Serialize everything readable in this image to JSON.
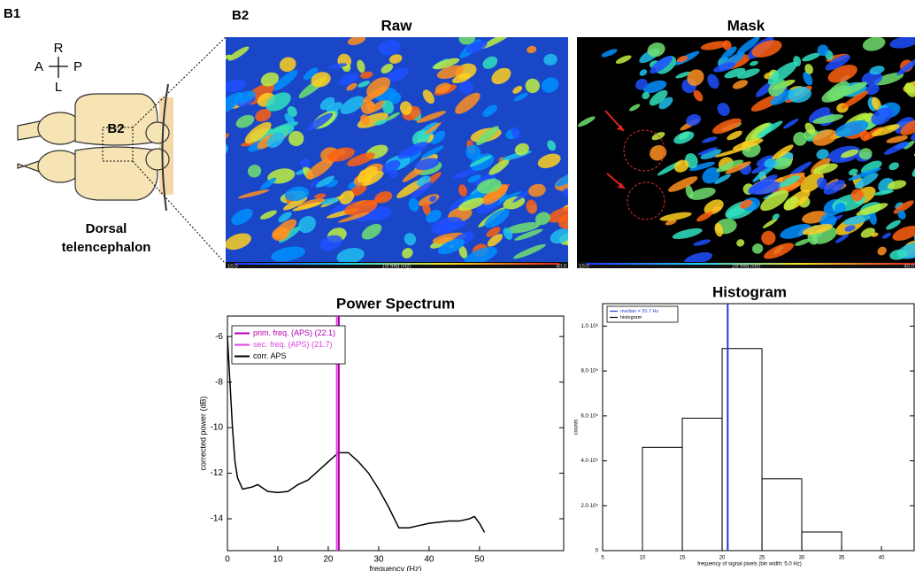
{
  "panels": {
    "b1": {
      "label": "B1",
      "orientation": {
        "r": "R",
        "a": "A",
        "p": "P",
        "l": "L"
      },
      "region": "B2",
      "caption": [
        "Dorsal",
        "telencephalon"
      ]
    },
    "b2": {
      "label": "B2",
      "images": [
        {
          "title": "Raw",
          "colorbar": [
            "10.0",
            "1st freq (Hz)",
            "40.0"
          ]
        },
        {
          "title": "Mask",
          "colorbar": [
            "10.0",
            "1st freq (Hz)",
            "40.0"
          ]
        }
      ]
    }
  },
  "chart_data": [
    {
      "type": "line",
      "title": "Power Spectrum",
      "x_label": "frequency (Hz)",
      "y_label": "corrected power (dB)",
      "x": [
        0,
        0.5,
        1,
        1.5,
        2,
        3,
        5,
        6,
        8,
        10,
        12,
        14,
        16,
        18,
        20,
        22,
        24,
        26,
        28,
        30,
        32,
        34,
        36,
        38,
        40,
        42,
        44,
        46,
        48,
        49,
        50,
        51
      ],
      "series": [
        {
          "name": "corr. APS",
          "color": "#000000",
          "values": [
            -6,
            -8,
            -10,
            -11.5,
            -12.2,
            -12.7,
            -12.6,
            -12.5,
            -12.8,
            -12.85,
            -12.8,
            -12.5,
            -12.3,
            -11.9,
            -11.5,
            -11.1,
            -11.1,
            -11.5,
            -12,
            -12.7,
            -13.5,
            -14.4,
            -14.4,
            -14.3,
            -14.2,
            -14.15,
            -14.1,
            -14.1,
            -14,
            -13.9,
            -14.2,
            -14.6
          ]
        }
      ],
      "vlines": [
        {
          "name": "prim. freq. (APS) (22.1)",
          "color": "#b000b0",
          "x": 22.1
        },
        {
          "name": "sec. freq. (APS) (21.7)",
          "color": "#e040e0",
          "x": 21.7
        }
      ],
      "xlim": [
        0,
        66.7
      ],
      "xticks": [
        0,
        10,
        20,
        30,
        40,
        50
      ],
      "ylim": [
        -15.4,
        -5.1
      ],
      "yticks": [
        -6,
        -8,
        -10,
        -12,
        -14
      ]
    },
    {
      "type": "histogram",
      "title": "Histogram",
      "x_label": "frequency of signal pixels (bin width: 5.0 Hz)",
      "y_label": "counts",
      "name": "histogram",
      "color": "#000000",
      "bins": [
        10,
        15,
        20,
        25,
        30,
        35
      ],
      "values": [
        460000,
        590000,
        900000,
        320000,
        83000
      ],
      "vlines": [
        {
          "name": "median = 20.7 Hz",
          "color": "#1f3fd0",
          "x": 20.7
        }
      ],
      "xlim": [
        5,
        44.1
      ],
      "xticks": [
        5,
        10,
        15,
        20,
        25,
        30,
        35,
        40
      ],
      "ylim": [
        0,
        1100000
      ],
      "yticks": [
        0,
        {
          "value": 200000,
          "label": "2.0·10⁵"
        },
        {
          "value": 400000,
          "label": "4.0·10⁵"
        },
        {
          "value": 600000,
          "label": "6.0·10⁵"
        },
        {
          "value": 800000,
          "label": "8.0·10⁵"
        },
        {
          "value": 1000000,
          "label": "1.0·10⁶"
        }
      ]
    }
  ]
}
